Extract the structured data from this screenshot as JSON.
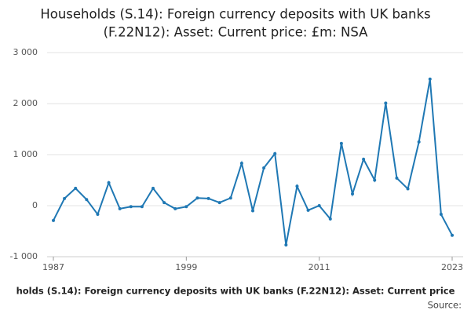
{
  "chart_data": {
    "type": "line",
    "title": [
      "Households (S.14): Foreign currency deposits with UK banks",
      "(F.22N12): Asset: Current price: £m: NSA"
    ],
    "footer": "holds (S.14): Foreign currency deposits with UK banks (F.22N12): Asset: Current price",
    "source": "Source:",
    "x": [
      1987,
      1988,
      1989,
      1990,
      1991,
      1992,
      1993,
      1994,
      1995,
      1996,
      1997,
      1998,
      1999,
      2000,
      2001,
      2002,
      2003,
      2004,
      2005,
      2006,
      2007,
      2008,
      2009,
      2010,
      2011,
      2012,
      2013,
      2014,
      2015,
      2016,
      2017,
      2018,
      2019,
      2020,
      2021,
      2022,
      2023
    ],
    "series": [
      {
        "name": "Households (S.14): Foreign currency deposits with UK banks",
        "color": "#1f78b4",
        "values": [
          -290,
          140,
          340,
          120,
          -170,
          450,
          -60,
          -20,
          -20,
          340,
          60,
          -60,
          -20,
          150,
          140,
          60,
          150,
          830,
          -100,
          740,
          1020,
          -770,
          380,
          -90,
          0,
          -260,
          1220,
          230,
          910,
          500,
          2010,
          540,
          330,
          1250,
          2480,
          -170,
          -580
        ]
      }
    ],
    "xlim": [
      1987,
      2023
    ],
    "xticks": [
      1987,
      1999,
      2011,
      2023
    ],
    "ylim": [
      -1000,
      3000
    ],
    "yticks": [
      {
        "value": 3000,
        "label": "3 000"
      },
      {
        "value": 2000,
        "label": "2 000"
      },
      {
        "value": 1000,
        "label": "1 000"
      },
      0,
      {
        "value": -1000,
        "label": "-1 000"
      }
    ],
    "grid": true
  }
}
